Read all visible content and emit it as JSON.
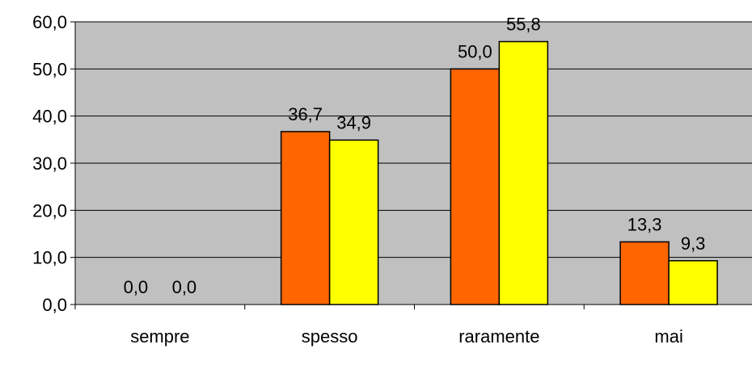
{
  "chart_data": {
    "type": "bar",
    "categories": [
      "sempre",
      "spesso",
      "raramente",
      "mai"
    ],
    "series": [
      {
        "values": [
          0.0,
          36.7,
          50.0,
          13.3
        ],
        "color": "#ff6600"
      },
      {
        "values": [
          0.0,
          34.9,
          55.8,
          9.3
        ],
        "color": "#ffff00"
      }
    ],
    "data_labels": [
      [
        "0,0",
        "36,7",
        "50,0",
        "13,3"
      ],
      [
        "0,0",
        "34,9",
        "55,8",
        "9,3"
      ]
    ],
    "y_ticks": [
      0,
      10,
      20,
      30,
      40,
      50,
      60
    ],
    "y_tick_labels": [
      "0,0",
      "10,0",
      "20,0",
      "30,0",
      "40,0",
      "50,0",
      "60,0"
    ],
    "ylim": [
      0,
      60
    ],
    "grid": true,
    "legend": "none",
    "plot_background": "#c0c0c0",
    "title": "",
    "xlabel": "",
    "ylabel": ""
  }
}
